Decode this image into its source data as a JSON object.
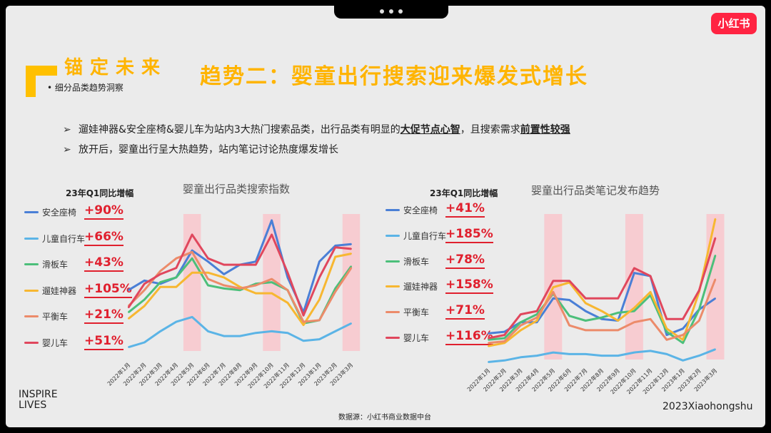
{
  "header": {
    "logo_text": "小红书",
    "brand_title": "锚定未来",
    "brand_subtitle": "• 细分品类趋势洞察",
    "main_title": "趋势二：婴童出行搜索迎来爆发式增长"
  },
  "bullets": [
    {
      "arrow": "➢",
      "text_before": "遛娃神器&安全座椅&婴儿车为站内3大热门搜索品类，出行品类有明显的",
      "bold1": "大促节点心智",
      "text_mid": "，且搜索需求",
      "bold2": "前置性较强"
    },
    {
      "arrow": "➢",
      "text": "放开后，婴童出行呈大热趋势，站内笔记讨论热度爆发增长"
    }
  ],
  "charts": [
    {
      "growth_label": "23年Q1同比增幅",
      "legend": [
        {
          "name": "安全座椅",
          "pct": "+90%"
        },
        {
          "name": "儿童自行车",
          "pct": "+66%"
        },
        {
          "name": "滑板车",
          "pct": "+43%"
        },
        {
          "name": "遛娃神器",
          "pct": "+105%"
        },
        {
          "name": "平衡车",
          "pct": "+21%"
        },
        {
          "name": "婴儿车",
          "pct": "+51%"
        }
      ]
    },
    {
      "growth_label": "23年Q1同比增幅",
      "legend": [
        {
          "name": "安全座椅",
          "pct": "+41%"
        },
        {
          "name": "儿童自行车",
          "pct": "+185%"
        },
        {
          "name": "滑板车",
          "pct": "+78%"
        },
        {
          "name": "遛娃神器",
          "pct": "+158%"
        },
        {
          "name": "平衡车",
          "pct": "+71%"
        },
        {
          "name": "婴儿车",
          "pct": "+116%"
        }
      ]
    }
  ],
  "chart_data": [
    {
      "type": "line",
      "title": "婴童出行品类搜索指数",
      "categories": [
        "2022年1月",
        "2022年2月",
        "2022年3月",
        "2022年4月",
        "2022年5月",
        "2022年6月",
        "2022年7月",
        "2022年8月",
        "2022年9月",
        "2022年10月",
        "2022年11月",
        "2022年12月",
        "2023年1月",
        "2023年2月",
        "2023年3月"
      ],
      "highlight_bands": [
        "2022年5月",
        "2022年10月",
        "2023年3月"
      ],
      "grid": false,
      "series": [
        {
          "name": "安全座椅",
          "color": "#4a7fd6",
          "values": [
            42,
            48,
            46,
            50,
            67,
            60,
            52,
            58,
            60,
            86,
            50,
            28,
            60,
            70,
            71
          ]
        },
        {
          "name": "儿童自行车",
          "color": "#5bb4e6",
          "values": [
            6,
            9,
            16,
            22,
            25,
            16,
            13,
            13,
            15,
            16,
            15,
            10,
            11,
            16,
            21
          ]
        },
        {
          "name": "滑板车",
          "color": "#4cbf7a",
          "values": [
            28,
            36,
            47,
            50,
            62,
            45,
            43,
            42,
            46,
            47,
            42,
            21,
            23,
            43,
            57
          ]
        },
        {
          "name": "遛娃神器",
          "color": "#f7b731",
          "values": [
            24,
            32,
            44,
            44,
            53,
            53,
            50,
            44,
            40,
            40,
            34,
            20,
            36,
            63,
            65
          ]
        },
        {
          "name": "平衡车",
          "color": "#ec8b6a",
          "values": [
            32,
            42,
            54,
            62,
            66,
            49,
            45,
            43,
            45,
            49,
            42,
            22,
            23,
            41,
            56
          ]
        },
        {
          "name": "婴儿车",
          "color": "#e0475d",
          "values": [
            31,
            46,
            52,
            56,
            77,
            62,
            58,
            58,
            58,
            77,
            53,
            26,
            50,
            69,
            68
          ]
        }
      ]
    },
    {
      "type": "line",
      "title": "婴童出行品类笔记发布趋势",
      "categories": [
        "2022年1月",
        "2022年2月",
        "2022年3月",
        "2022年4月",
        "2022年5月",
        "2022年6月",
        "2022年7月",
        "2022年8月",
        "2022年9月",
        "2022年10月",
        "2022年11月",
        "2022年12月",
        "2023年1月",
        "2023年2月",
        "2023年3月"
      ],
      "highlight_bands": [
        "2022年5月",
        "2022年10月",
        "2023年3月"
      ],
      "grid": false,
      "series": [
        {
          "name": "安全座椅",
          "color": "#4a7fd6",
          "values": [
            20,
            21,
            27,
            27,
            42,
            41,
            34,
            29,
            28,
            58,
            56,
            19,
            23,
            35,
            42
          ]
        },
        {
          "name": "儿童自行车",
          "color": "#5bb4e6",
          "values": [
            2,
            3,
            5,
            6,
            8,
            7,
            7,
            6,
            6,
            8,
            9,
            7,
            3,
            6,
            10
          ]
        },
        {
          "name": "滑板车",
          "color": "#4cbf7a",
          "values": [
            16,
            17,
            27,
            32,
            45,
            31,
            28,
            30,
            33,
            34,
            44,
            21,
            14,
            35,
            69
          ]
        },
        {
          "name": "遛娃神器",
          "color": "#f7b731",
          "values": [
            12,
            14,
            22,
            28,
            49,
            52,
            39,
            34,
            28,
            36,
            46,
            23,
            16,
            46,
            92
          ]
        },
        {
          "name": "平衡车",
          "color": "#ec8b6a",
          "values": [
            14,
            15,
            25,
            30,
            46,
            25,
            22,
            22,
            22,
            27,
            29,
            16,
            19,
            28,
            54
          ]
        },
        {
          "name": "婴儿车",
          "color": "#e0475d",
          "values": [
            17,
            19,
            32,
            34,
            53,
            53,
            42,
            42,
            42,
            61,
            56,
            29,
            29,
            47,
            80
          ]
        }
      ]
    }
  ],
  "footer": {
    "inspire_line1": "INSPIRE",
    "inspire_line2": "LIVES",
    "year_brand": "2023Xiaohongshu",
    "source": "数据源：小红书商业数据中台"
  }
}
